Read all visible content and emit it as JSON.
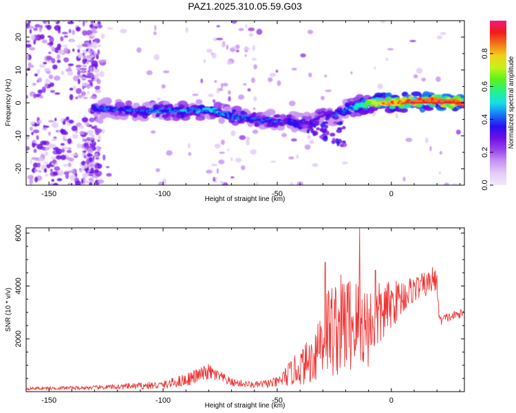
{
  "title": "PAZ1.2025.310.05.59.G03",
  "colors": {
    "snr_line": "#ee3333",
    "spectrogram_ramp": [
      "#f2e8fb",
      "#e4cdf7",
      "#c996f2",
      "#9a45eb",
      "#6f10e6",
      "#2a0ff0",
      "#1877f5",
      "#16dfe8",
      "#27f08a",
      "#5bf21a",
      "#c4f21a",
      "#f2d11a",
      "#f2781a",
      "#f21a1a",
      "#f21a7c"
    ]
  },
  "chart_data": [
    {
      "type": "heatmap",
      "title": "PAZ1.2025.310.05.59.G03",
      "xlabel": "Height of straight line (km)",
      "ylabel": "Frequency (Hz)",
      "xlim": [
        -160,
        32
      ],
      "ylim": [
        -25,
        25
      ],
      "xticks": [
        -150,
        -100,
        -50,
        0
      ],
      "yticks": [
        -20,
        -10,
        0,
        10,
        20
      ],
      "colorbar": {
        "label": "Normalized spectral amplitude",
        "range": [
          0,
          1
        ],
        "ticks": [
          "0.0",
          "0.2",
          "0.4",
          "0.6",
          "0.8"
        ]
      },
      "ridge": [
        {
          "x": -130,
          "f": -1.5
        },
        {
          "x": -120,
          "f": -2
        },
        {
          "x": -110,
          "f": -2.5
        },
        {
          "x": -100,
          "f": -2.5
        },
        {
          "x": -90,
          "f": -2.5
        },
        {
          "x": -80,
          "f": -2
        },
        {
          "x": -70,
          "f": -4
        },
        {
          "x": -60,
          "f": -5
        },
        {
          "x": -50,
          "f": -5.5
        },
        {
          "x": -45,
          "f": -5
        },
        {
          "x": -40,
          "f": -6
        },
        {
          "x": -35,
          "f": -6
        },
        {
          "x": -30,
          "f": -3
        },
        {
          "x": -25,
          "f": -4
        },
        {
          "x": -20,
          "f": -2
        },
        {
          "x": -15,
          "f": -1
        },
        {
          "x": -10,
          "f": 0
        },
        {
          "x": 0,
          "f": 0
        },
        {
          "x": 10,
          "f": 0.5
        },
        {
          "x": 20,
          "f": 0.5
        },
        {
          "x": 32,
          "f": 0
        }
      ],
      "ridge_amplitude": [
        {
          "x": -130,
          "a": 0.35
        },
        {
          "x": -100,
          "a": 0.42
        },
        {
          "x": -80,
          "a": 0.45
        },
        {
          "x": -50,
          "a": 0.35
        },
        {
          "x": -30,
          "a": 0.3
        },
        {
          "x": -15,
          "a": 0.5
        },
        {
          "x": -5,
          "a": 0.8
        },
        {
          "x": 10,
          "a": 0.88
        },
        {
          "x": 32,
          "a": 0.94
        }
      ]
    },
    {
      "type": "line",
      "xlabel": "Height of straight line (km)",
      "ylabel": "SNR (10 * v/v)",
      "xlim": [
        -160,
        32
      ],
      "ylim": [
        0,
        6200
      ],
      "xticks": [
        -150,
        -100,
        -50,
        0
      ],
      "yticks": [
        2000,
        4000,
        6000
      ],
      "series": [
        {
          "name": "SNR",
          "color": "#ee3333",
          "envelope": [
            {
              "x": -160,
              "base": 120,
              "amp": 60
            },
            {
              "x": -130,
              "base": 150,
              "amp": 80
            },
            {
              "x": -100,
              "base": 250,
              "amp": 150
            },
            {
              "x": -90,
              "base": 450,
              "amp": 250
            },
            {
              "x": -80,
              "base": 750,
              "amp": 300
            },
            {
              "x": -70,
              "base": 350,
              "amp": 150
            },
            {
              "x": -60,
              "base": 250,
              "amp": 120
            },
            {
              "x": -50,
              "base": 350,
              "amp": 200
            },
            {
              "x": -45,
              "base": 650,
              "amp": 450
            },
            {
              "x": -35,
              "base": 1200,
              "amp": 900
            },
            {
              "x": -30,
              "base": 2200,
              "amp": 1800
            },
            {
              "x": -20,
              "base": 2600,
              "amp": 2000
            },
            {
              "x": -10,
              "base": 2500,
              "amp": 1600
            },
            {
              "x": 0,
              "base": 3300,
              "amp": 900
            },
            {
              "x": 10,
              "base": 3900,
              "amp": 500
            },
            {
              "x": 20,
              "base": 4200,
              "amp": 450
            },
            {
              "x": 21,
              "base": 2700,
              "amp": 200
            },
            {
              "x": 32,
              "base": 3000,
              "amp": 150
            }
          ],
          "spikes": [
            {
              "x": -14,
              "y": 6200
            },
            {
              "x": -29,
              "y": 4900
            },
            {
              "x": -7,
              "y": 4600
            },
            {
              "x": 18,
              "y": 4700
            }
          ]
        }
      ]
    }
  ]
}
